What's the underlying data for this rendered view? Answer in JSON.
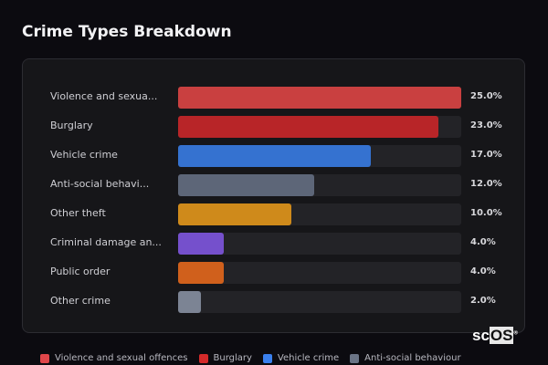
{
  "chart_data": {
    "type": "bar",
    "orientation": "horizontal",
    "title": "Crime Types Breakdown",
    "xlim": [
      0,
      25
    ],
    "categories": [
      "Violence and sexua...",
      "Burglary",
      "Vehicle crime",
      "Anti-social behavi...",
      "Other theft",
      "Criminal damage an...",
      "Public order",
      "Other crime"
    ],
    "values": [
      25.0,
      23.0,
      17.0,
      12.0,
      10.0,
      4.0,
      4.0,
      2.0
    ],
    "value_labels": [
      "25.0%",
      "23.0%",
      "17.0%",
      "12.0%",
      "10.0%",
      "4.0%",
      "4.0%",
      "2.0%"
    ],
    "colors": [
      "#c94040",
      "#b82528",
      "#3572d0",
      "#5d6678",
      "#cf8a1b",
      "#7550cc",
      "#d0601c",
      "#7c8494"
    ],
    "legend": {
      "placement": "bottom",
      "items": [
        {
          "label": "Violence and sexual offences",
          "color": "#e0464a"
        },
        {
          "label": "Burglary",
          "color": "#d42a2a"
        },
        {
          "label": "Vehicle crime",
          "color": "#3a80ee"
        },
        {
          "label": "Anti-social behaviour",
          "color": "#6b7486"
        }
      ]
    }
  },
  "logo": {
    "text": "scOS"
  }
}
